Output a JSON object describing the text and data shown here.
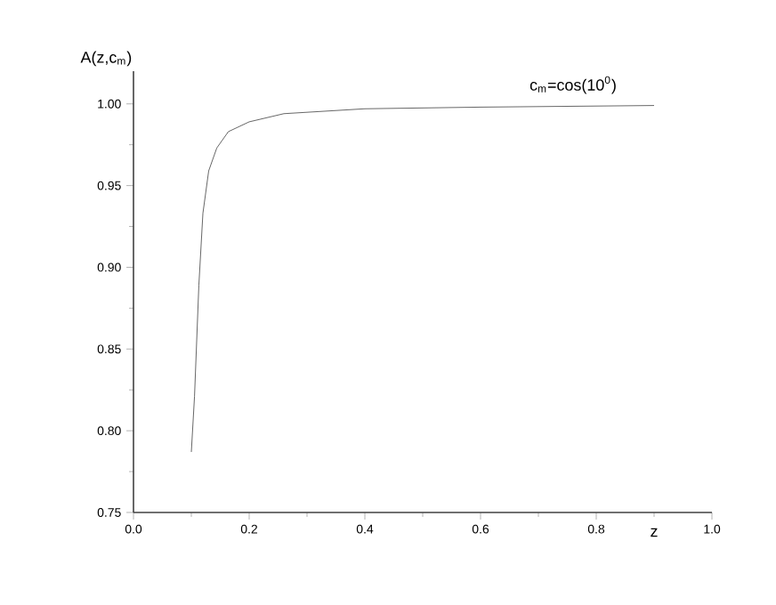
{
  "chart_data": {
    "type": "line",
    "xlabel": "z",
    "ylabel": "A(z,c$_{m}$)",
    "annotations": [
      "c$_{m}$=cos(10$^{0}$)"
    ],
    "x": [
      0.1,
      0.1055,
      0.113,
      0.12,
      0.13,
      0.144,
      0.164,
      0.2,
      0.26,
      0.4,
      0.6,
      0.9
    ],
    "series": [
      {
        "color": "#404040",
        "values": [
          0.787,
          0.821,
          0.889,
          0.933,
          0.959,
          0.973,
          0.983,
          0.989,
          0.994,
          0.997,
          0.998,
          0.999
        ]
      }
    ],
    "xlim": [
      0,
      1.0
    ],
    "ylim": [
      0.75,
      1.02
    ],
    "xticks": [
      {
        "value": 0,
        "label": "0.0"
      },
      {
        "value": 0.2,
        "label": "0.2"
      },
      {
        "value": 0.4,
        "label": "0.4"
      },
      {
        "value": 0.6,
        "label": "0.6"
      },
      {
        "value": 0.8,
        "label": "0.8"
      },
      {
        "value": 1.0,
        "label": "1.0"
      }
    ],
    "yticks": [
      {
        "value": 0.75,
        "label": "0.75"
      },
      {
        "value": 0.8,
        "label": "0.80"
      },
      {
        "value": 0.85,
        "label": "0.85"
      },
      {
        "value": 0.9,
        "label": "0.90"
      },
      {
        "value": 0.95,
        "label": "0.95"
      },
      {
        "value": 1.0,
        "label": "1.00"
      }
    ],
    "marker": "none",
    "line_style": "solid"
  }
}
